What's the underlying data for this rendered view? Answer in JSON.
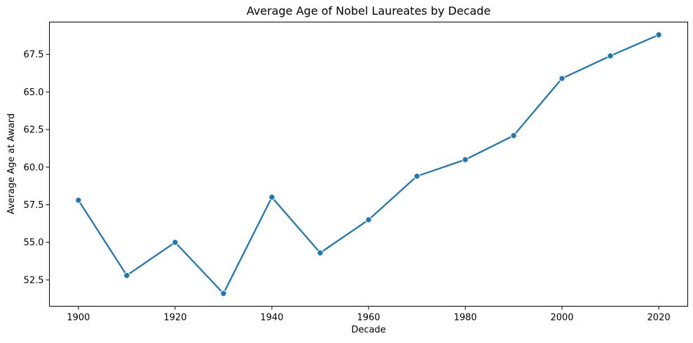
{
  "chart_data": {
    "type": "line",
    "title": "Average Age of Nobel Laureates by Decade",
    "xlabel": "Decade",
    "ylabel": "Average Age at Award",
    "x": [
      1900,
      1910,
      1920,
      1930,
      1940,
      1950,
      1960,
      1970,
      1980,
      1990,
      2000,
      2010,
      2020
    ],
    "series": [
      {
        "values": [
          57.8,
          52.8,
          55.0,
          51.6,
          58.0,
          54.3,
          56.5,
          59.4,
          60.5,
          62.1,
          65.9,
          67.4,
          68.8
        ]
      }
    ],
    "xlim": [
      1894,
      2026
    ],
    "ylim": [
      50.75,
      69.65
    ],
    "xticks": [
      1900,
      1920,
      1940,
      1960,
      1980,
      2000,
      2020
    ],
    "yticks": [
      52.5,
      55.0,
      57.5,
      60.0,
      62.5,
      65.0,
      67.5
    ],
    "ytick_labels": [
      "52.5",
      "55.0",
      "57.5",
      "60.0",
      "62.5",
      "65.0",
      "67.5"
    ],
    "grid": false,
    "colors": {
      "line": "#1f77b4",
      "marker": "#1f77b4"
    }
  }
}
